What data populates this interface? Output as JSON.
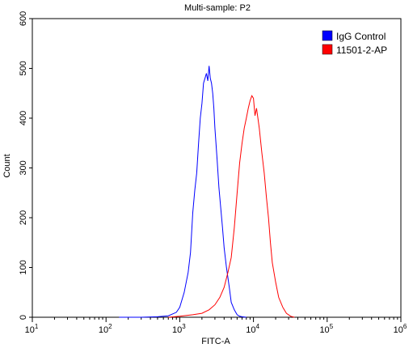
{
  "chart_data": {
    "type": "line",
    "title": "Multi-sample: P2",
    "xlabel": "FITC-A",
    "ylabel": "Count",
    "x_scale": "log",
    "xlim": [
      10,
      1000000
    ],
    "ylim": [
      0,
      600
    ],
    "x_ticks": [
      {
        "value": 10,
        "base": "10",
        "exp": "1"
      },
      {
        "value": 100,
        "base": "10",
        "exp": "2"
      },
      {
        "value": 1000,
        "base": "10",
        "exp": "3"
      },
      {
        "value": 10000,
        "base": "10",
        "exp": "4"
      },
      {
        "value": 100000,
        "base": "10",
        "exp": "5"
      },
      {
        "value": 1000000,
        "base": "10",
        "exp": "6"
      }
    ],
    "y_ticks": [
      "0",
      "100",
      "200",
      "300",
      "400",
      "500",
      "600"
    ],
    "grid": false,
    "legend_position": "top-right",
    "series": [
      {
        "name": "IgG Control",
        "color": "#0000ff",
        "x": [
          150,
          300,
          500,
          700,
          900,
          1000,
          1150,
          1300,
          1400,
          1500,
          1600,
          1700,
          1800,
          1900,
          2000,
          2100,
          2200,
          2300,
          2400,
          2500,
          2600,
          2700,
          2800,
          2900,
          3000,
          3200,
          3400,
          3600,
          3800,
          4000,
          4300,
          4700,
          5000,
          5500,
          6000,
          6500,
          7000,
          8000
        ],
        "y": [
          0,
          0,
          1,
          3,
          10,
          20,
          50,
          90,
          130,
          210,
          255,
          290,
          350,
          400,
          430,
          470,
          480,
          490,
          475,
          505,
          480,
          470,
          450,
          420,
          380,
          320,
          260,
          220,
          180,
          140,
          100,
          60,
          30,
          15,
          5,
          2,
          1,
          0
        ]
      },
      {
        "name": "11501-2-AP",
        "color": "#ff0000",
        "x": [
          700,
          1000,
          1500,
          2000,
          2500,
          3000,
          3500,
          4000,
          4500,
          5000,
          5500,
          6000,
          6500,
          7000,
          7500,
          8000,
          8500,
          9000,
          9500,
          10000,
          10500,
          11000,
          12000,
          13000,
          14000,
          15000,
          16000,
          17000,
          18000,
          20000,
          22000,
          25000,
          28000,
          32000,
          36000
        ],
        "y": [
          0,
          2,
          5,
          8,
          15,
          25,
          40,
          60,
          90,
          120,
          180,
          250,
          310,
          350,
          380,
          400,
          420,
          435,
          445,
          440,
          405,
          420,
          380,
          330,
          290,
          240,
          200,
          150,
          110,
          70,
          40,
          20,
          8,
          2,
          0
        ]
      }
    ]
  }
}
